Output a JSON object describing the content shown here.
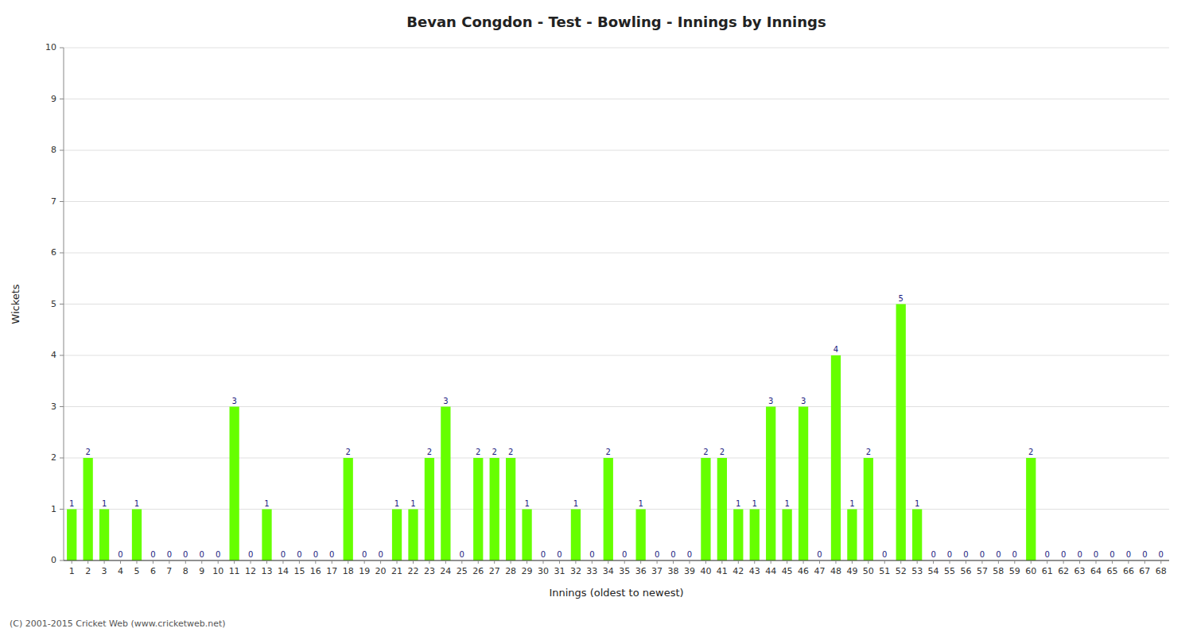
{
  "chart_data": {
    "type": "bar",
    "title": "Bevan Congdon - Test - Bowling - Innings by Innings",
    "x_label": "Innings (oldest to newest)",
    "y_label": "Wickets",
    "annotations": [
      "(C) 2001-2015 Cricket Web (www.cricketweb.net)"
    ],
    "categories": [
      1,
      2,
      3,
      4,
      5,
      6,
      7,
      8,
      9,
      10,
      11,
      12,
      13,
      14,
      15,
      16,
      17,
      18,
      19,
      20,
      21,
      22,
      23,
      24,
      25,
      26,
      27,
      28,
      29,
      30,
      31,
      32,
      33,
      34,
      35,
      36,
      37,
      38,
      39,
      40,
      41,
      42,
      43,
      44,
      45,
      46,
      47,
      48,
      49,
      50,
      51,
      52,
      53,
      54,
      55,
      56,
      57,
      58,
      59,
      60,
      61,
      62,
      63,
      64,
      65,
      66,
      67,
      68
    ],
    "values": [
      1,
      2,
      1,
      0,
      1,
      0,
      0,
      0,
      0,
      0,
      3,
      0,
      1,
      0,
      0,
      0,
      0,
      2,
      0,
      0,
      1,
      1,
      2,
      3,
      0,
      2,
      2,
      2,
      1,
      0,
      0,
      1,
      0,
      2,
      0,
      1,
      0,
      0,
      0,
      2,
      2,
      1,
      1,
      3,
      1,
      3,
      0,
      4,
      1,
      2,
      0,
      5,
      1,
      0,
      0,
      0,
      0,
      0,
      0,
      2,
      0,
      0,
      0,
      0,
      0,
      0,
      0,
      0
    ],
    "color": "#66ff00",
    "ylim": [
      0,
      10
    ],
    "yticks": [
      0,
      1,
      2,
      3,
      4,
      5,
      6,
      7,
      8,
      9,
      10
    ],
    "grid": true,
    "data_labels": true
  }
}
